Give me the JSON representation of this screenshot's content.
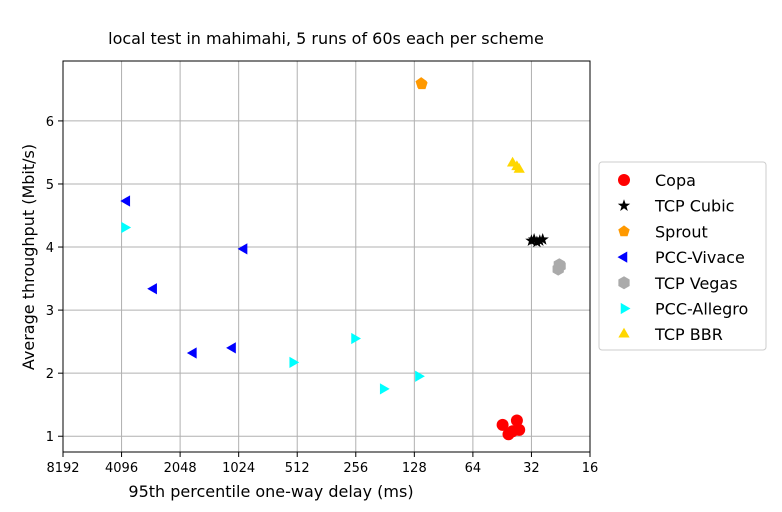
{
  "chart_data": {
    "type": "scatter",
    "title": "local test in mahimahi, 5 runs of 60s each per scheme",
    "xlabel": "95th percentile one-way delay (ms)",
    "ylabel": "Average throughput (Mbit/s)",
    "x_scale": "log2",
    "x_inverted": true,
    "xlim": [
      8192,
      16
    ],
    "ylim": [
      0.75,
      6.95
    ],
    "x_ticks": [
      8192,
      4096,
      2048,
      1024,
      512,
      256,
      128,
      64,
      32,
      16
    ],
    "x_tick_labels": [
      "8192",
      "4096",
      "2048",
      "1024",
      "512",
      "256",
      "128",
      "64",
      "32",
      "16"
    ],
    "y_ticks": [
      1,
      2,
      3,
      4,
      5,
      6
    ],
    "y_tick_labels": [
      "1",
      "2",
      "3",
      "4",
      "5",
      "6"
    ],
    "grid": true,
    "legend_position": "right",
    "series": [
      {
        "name": "Copa",
        "marker": "circle",
        "color": "#ff0000",
        "points": [
          [
            45,
            1.18
          ],
          [
            42,
            1.03
          ],
          [
            40,
            1.08
          ],
          [
            38,
            1.25
          ],
          [
            37,
            1.1
          ]
        ]
      },
      {
        "name": "TCP Cubic",
        "marker": "star",
        "color": "#000000",
        "points": [
          [
            32,
            4.1
          ],
          [
            31,
            4.12
          ],
          [
            30,
            4.08
          ],
          [
            29,
            4.1
          ],
          [
            28,
            4.12
          ]
        ]
      },
      {
        "name": "Sprout",
        "marker": "pentagon",
        "color": "#ff9900",
        "points": [
          [
            118,
            6.6
          ],
          [
            117,
            6.58
          ]
        ]
      },
      {
        "name": "PCC-Vivace",
        "marker": "triangle-left",
        "color": "#0000ff",
        "points": [
          [
            3850,
            4.73
          ],
          [
            2800,
            3.34
          ],
          [
            1750,
            2.32
          ],
          [
            1100,
            2.4
          ],
          [
            960,
            3.97
          ]
        ]
      },
      {
        "name": "TCP Vegas",
        "marker": "hexagon",
        "color": "#aaaaaa",
        "points": [
          [
            23,
            3.72
          ],
          [
            23.3,
            3.65
          ],
          [
            22.8,
            3.7
          ]
        ]
      },
      {
        "name": "PCC-Allegro",
        "marker": "triangle-right",
        "color": "#00ffff",
        "points": [
          [
            3950,
            4.31
          ],
          [
            540,
            2.17
          ],
          [
            260,
            2.55
          ],
          [
            185,
            1.75
          ],
          [
            122,
            1.95
          ]
        ]
      },
      {
        "name": "TCP BBR",
        "marker": "triangle-up",
        "color": "#ffd700",
        "points": [
          [
            40,
            5.33
          ],
          [
            38,
            5.27
          ],
          [
            37,
            5.23
          ]
        ]
      }
    ]
  }
}
